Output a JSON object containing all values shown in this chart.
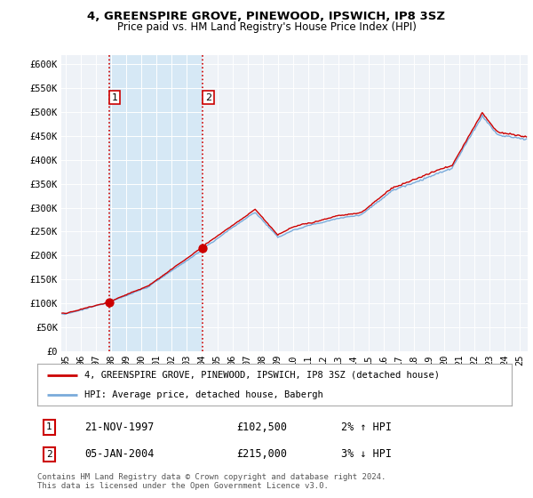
{
  "title": "4, GREENSPIRE GROVE, PINEWOOD, IPSWICH, IP8 3SZ",
  "subtitle": "Price paid vs. HM Land Registry's House Price Index (HPI)",
  "sale1_label": "1",
  "sale1_date": "21-NOV-1997",
  "sale1_price": "£102,500",
  "sale1_hpi": "2% ↑ HPI",
  "sale1_x": 1997.875,
  "sale1_y": 102500,
  "sale2_label": "2",
  "sale2_date": "05-JAN-2004",
  "sale2_price": "£215,000",
  "sale2_hpi": "3% ↓ HPI",
  "sale2_x": 2004.04,
  "sale2_y": 215000,
  "legend_line1": "4, GREENSPIRE GROVE, PINEWOOD, IPSWICH, IP8 3SZ (detached house)",
  "legend_line2": "HPI: Average price, detached house, Babergh",
  "footer": "Contains HM Land Registry data © Crown copyright and database right 2024.\nThis data is licensed under the Open Government Licence v3.0.",
  "line_color": "#cc0000",
  "hpi_color": "#7aabdb",
  "shade_color": "#d6e8f5",
  "background_color": "#ffffff",
  "plot_bg_color": "#eef2f7",
  "grid_color": "#ffffff",
  "ylim": [
    0,
    620000
  ],
  "yticks": [
    0,
    50000,
    100000,
    150000,
    200000,
    250000,
    300000,
    350000,
    400000,
    450000,
    500000,
    550000,
    600000
  ],
  "ytick_labels": [
    "£0",
    "£50K",
    "£100K",
    "£150K",
    "£200K",
    "£250K",
    "£300K",
    "£350K",
    "£400K",
    "£450K",
    "£500K",
    "£550K",
    "£600K"
  ],
  "xlim_start": 1994.7,
  "xlim_end": 2025.5,
  "xticks": [
    1995,
    1996,
    1997,
    1998,
    1999,
    2000,
    2001,
    2002,
    2003,
    2004,
    2005,
    2006,
    2007,
    2008,
    2009,
    2010,
    2011,
    2012,
    2013,
    2014,
    2015,
    2016,
    2017,
    2018,
    2019,
    2020,
    2021,
    2022,
    2023,
    2024,
    2025
  ],
  "xtick_labels": [
    "95",
    "96",
    "97",
    "98",
    "99",
    "00",
    "01",
    "02",
    "03",
    "04",
    "05",
    "06",
    "07",
    "08",
    "09",
    "10",
    "11",
    "12",
    "13",
    "14",
    "15",
    "16",
    "17",
    "18",
    "19",
    "20",
    "21",
    "22",
    "23",
    "24",
    "25"
  ]
}
